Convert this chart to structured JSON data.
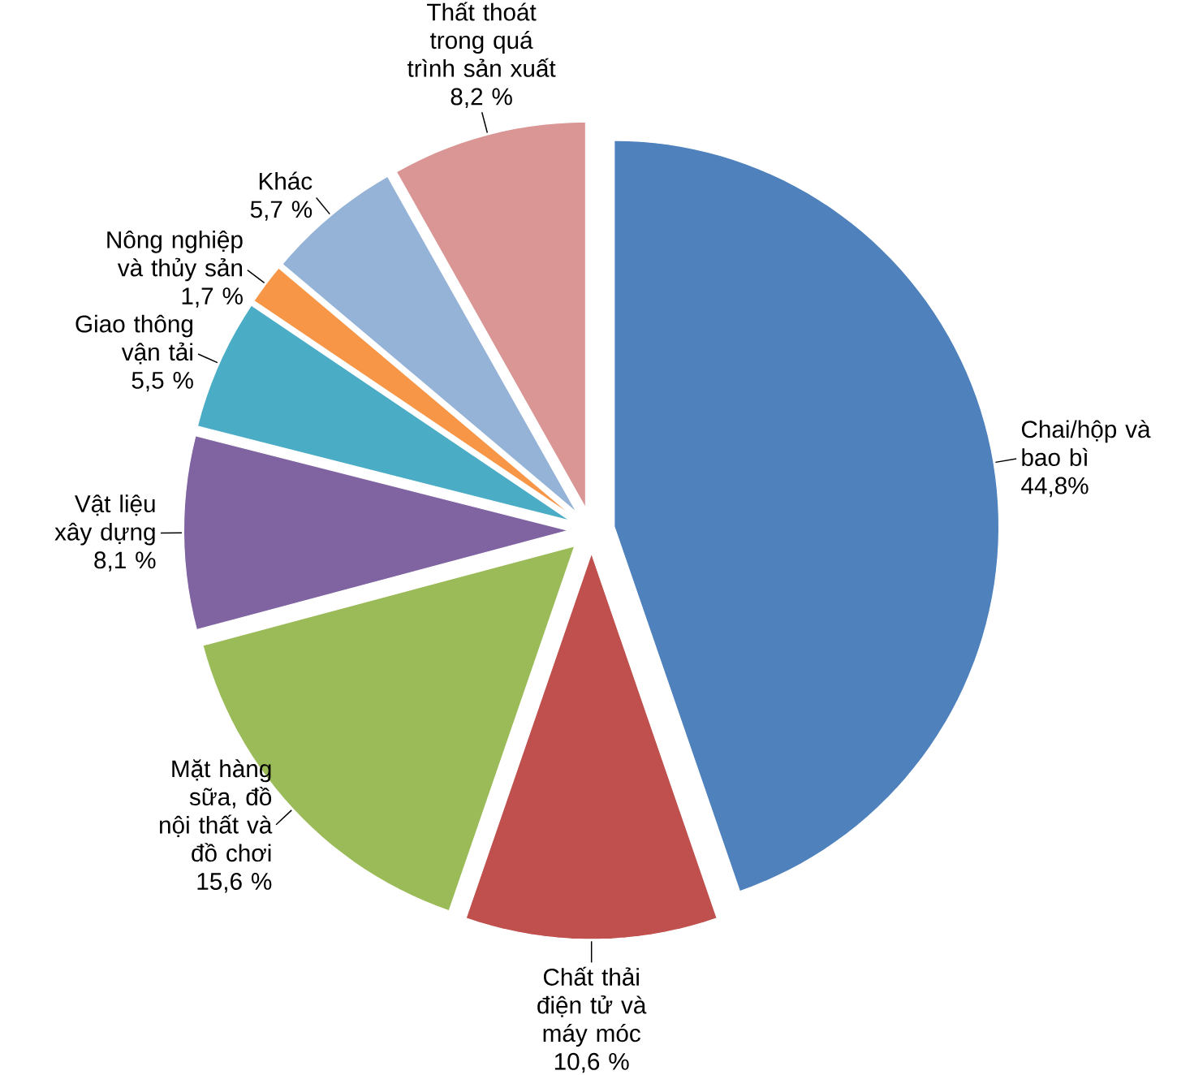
{
  "chart_data": {
    "type": "pie",
    "categories": [
      "Chai/hộp và bao bì",
      "Chất thải điện tử và máy móc",
      "Mặt hàng sữa, đồ nội thất và đồ chơi",
      "Vật liệu xây dựng",
      "Giao thông vận tải",
      "Nông nghiệp và thủy sản",
      "Khác",
      "Thất thoát trong quá trình sản xuất"
    ],
    "values": [
      44.8,
      10.6,
      15.6,
      8.1,
      5.5,
      1.7,
      5.7,
      8.2
    ],
    "value_labels": [
      "44,8%",
      "10,6 %",
      "15,6 %",
      "8,1 %",
      "5,5 %",
      "1,7 %",
      "5,7 %",
      "8,2 %"
    ],
    "colors": [
      "#4f81bd",
      "#c0504d",
      "#9bbb59",
      "#8064a2",
      "#4bacc6",
      "#f79646",
      "#95b3d7",
      "#d99694"
    ]
  }
}
